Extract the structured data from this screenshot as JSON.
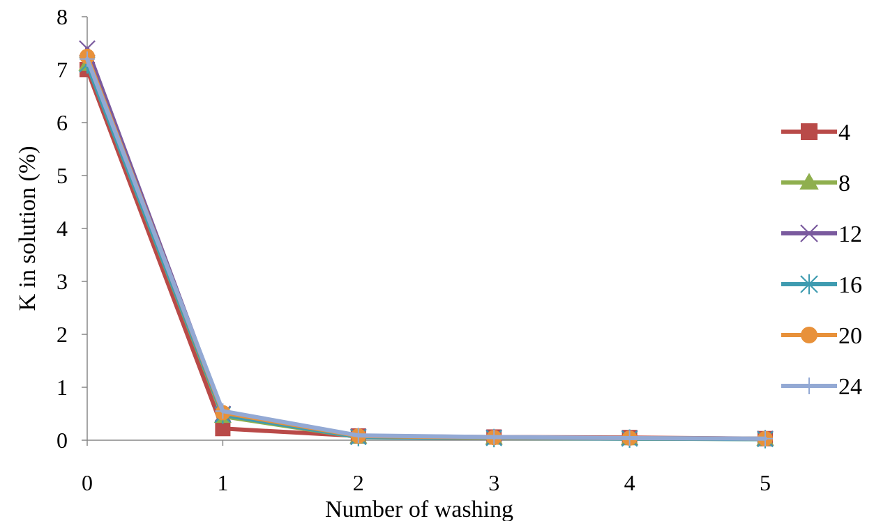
{
  "chart_data": {
    "type": "line",
    "title": "",
    "xlabel": "Number of washing",
    "ylabel": "K in solution (%)",
    "x": [
      0,
      1,
      2,
      3,
      4,
      5
    ],
    "xlim": [
      0,
      5
    ],
    "ylim": [
      0,
      8
    ],
    "yticks": [
      0,
      1,
      2,
      3,
      4,
      5,
      6,
      7,
      8
    ],
    "xticks": [
      0,
      1,
      2,
      3,
      4,
      5
    ],
    "grid": false,
    "legend_position": "right",
    "series": [
      {
        "name": "4",
        "color": "#B94A48",
        "marker": "square",
        "values": [
          7.0,
          0.22,
          0.08,
          0.06,
          0.05,
          0.03
        ]
      },
      {
        "name": "8",
        "color": "#8FAF4E",
        "marker": "triangle",
        "values": [
          7.1,
          0.45,
          0.06,
          0.04,
          0.03,
          0.02
        ]
      },
      {
        "name": "12",
        "color": "#7A5A9E",
        "marker": "x",
        "values": [
          7.4,
          0.5,
          0.07,
          0.05,
          0.04,
          0.03
        ]
      },
      {
        "name": "16",
        "color": "#3E9BB0",
        "marker": "star",
        "values": [
          7.1,
          0.48,
          0.06,
          0.04,
          0.03,
          0.02
        ]
      },
      {
        "name": "20",
        "color": "#E8913A",
        "marker": "circle",
        "values": [
          7.25,
          0.52,
          0.08,
          0.05,
          0.04,
          0.03
        ]
      },
      {
        "name": "24",
        "color": "#93A9D4",
        "marker": "plus",
        "values": [
          7.2,
          0.55,
          0.09,
          0.06,
          0.04,
          0.03
        ]
      }
    ]
  }
}
